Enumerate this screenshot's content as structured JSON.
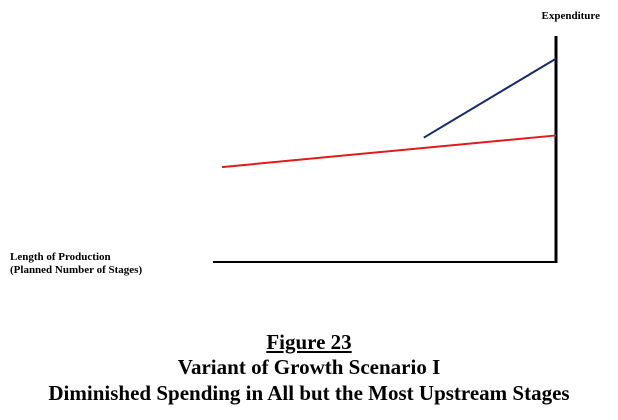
{
  "figure": {
    "heading": "Figure 23",
    "title_line1": "Variant of Growth Scenario I",
    "title_line2": "Diminished Spending in All but the Most Upstream Stages"
  },
  "chart_data": {
    "type": "line",
    "title": "Figure 23 Variant of Growth Scenario I Diminished Spending in All but the Most Upstream Stages",
    "xlabel": [
      "Length of Production",
      "(Planned Number of Stages)"
    ],
    "ylabel": "Expenditure",
    "axes_origin": "bottom-right",
    "grid": false,
    "legend": false,
    "series": [
      {
        "color": "#1a2a6c",
        "x": [
          0.38,
          0
        ],
        "y": [
          0.55,
          0.9
        ]
      },
      {
        "color": "#e01b1b",
        "x": [
          0.96,
          0
        ],
        "y": [
          0.42,
          0.56
        ]
      }
    ],
    "xlim": [
      1,
      0
    ],
    "ylim": [
      0,
      1
    ]
  }
}
